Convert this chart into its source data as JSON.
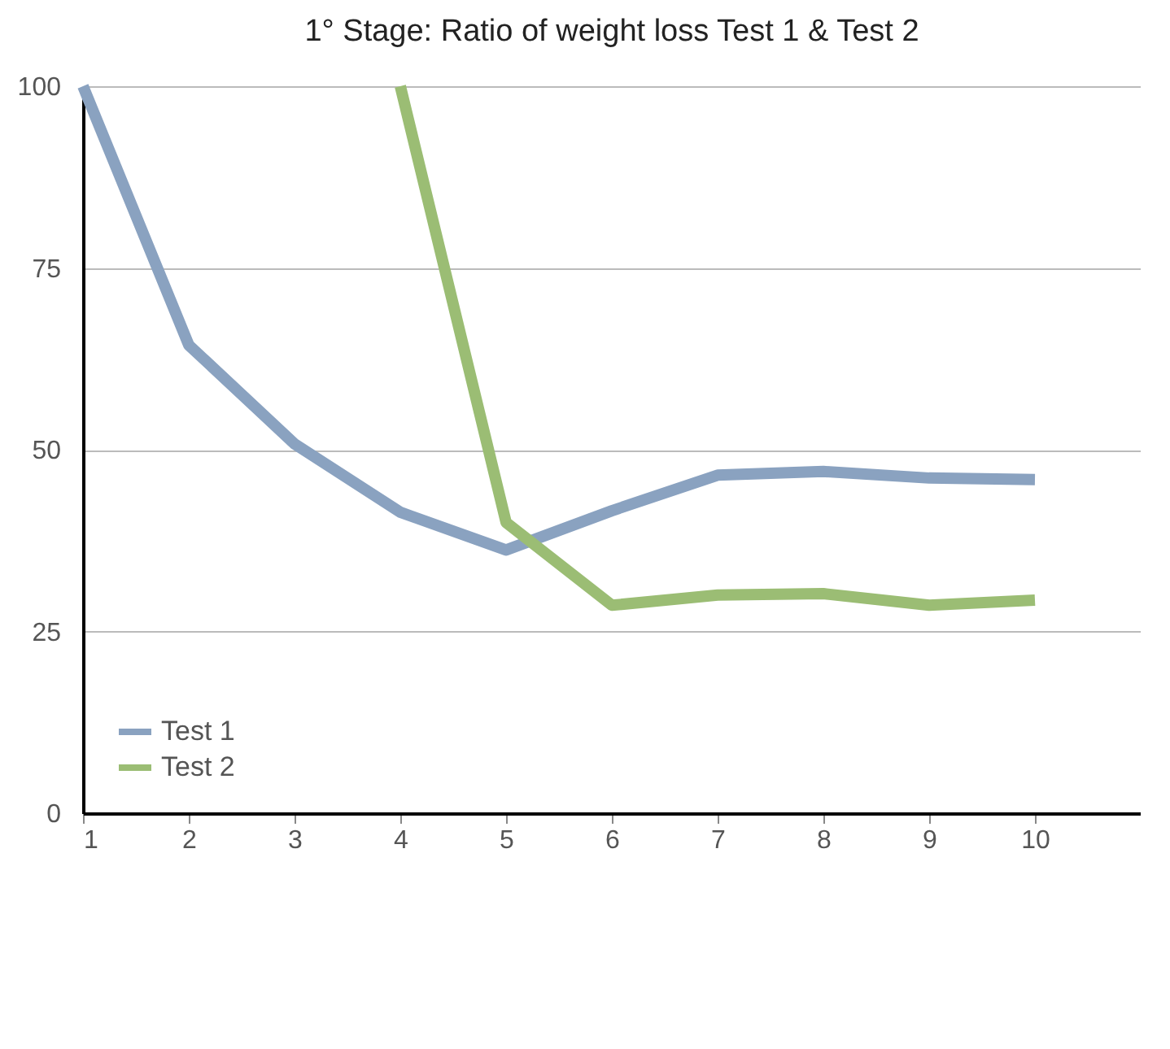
{
  "chart_data": {
    "type": "line",
    "title": "1°  Stage: Ratio of weight loss Test 1 & Test 2",
    "x": [
      1,
      2,
      3,
      4,
      5,
      6,
      7,
      8,
      9,
      10
    ],
    "series": [
      {
        "name": "Test 1",
        "color": "#8aa2c0",
        "values": [
          100,
          64.4,
          50.8,
          41.4,
          36.2,
          41.6,
          46.5,
          47.0,
          46.1,
          45.9
        ]
      },
      {
        "name": "Test 2",
        "color": "#9bbd74",
        "values": [
          null,
          null,
          null,
          100,
          40,
          28.6,
          30,
          30.2,
          28.6,
          29.3
        ]
      }
    ],
    "xlim": [
      1,
      11
    ],
    "xticks": [
      1,
      2,
      3,
      4,
      5,
      6,
      7,
      8,
      9,
      10
    ],
    "ylim": [
      0,
      100
    ],
    "yticks": [
      0,
      25,
      50,
      75,
      100
    ],
    "grid": "y",
    "legend": "bottom left",
    "marker": "none",
    "line_style": "solid"
  }
}
